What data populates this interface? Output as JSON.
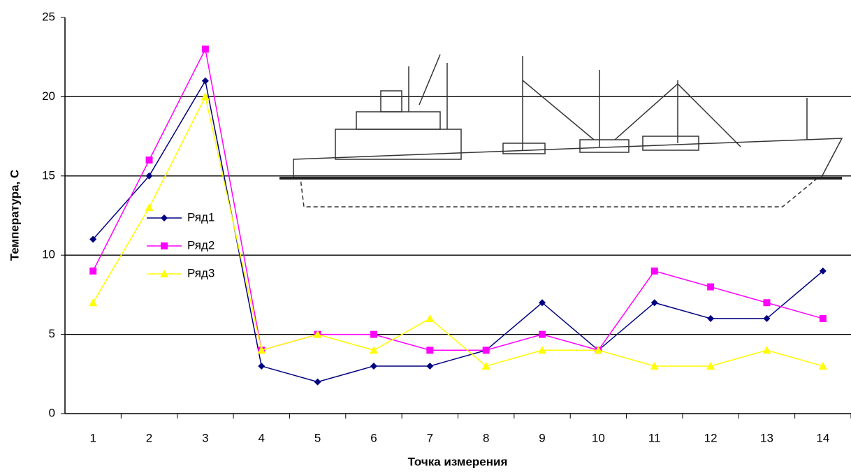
{
  "chart_data": {
    "type": "line",
    "xlabel": "Точка измерения",
    "ylabel": "Температура, С",
    "categories": [
      "1",
      "2",
      "3",
      "4",
      "5",
      "6",
      "7",
      "8",
      "9",
      "10",
      "11",
      "12",
      "13",
      "14"
    ],
    "series": [
      {
        "name": "Ряд1",
        "color": "#000080",
        "marker": "diamond",
        "values": [
          11,
          15,
          21,
          3,
          2,
          3,
          3,
          4,
          7,
          4,
          7,
          6,
          6,
          9
        ]
      },
      {
        "name": "Ряд2",
        "color": "#ff00ff",
        "marker": "square",
        "values": [
          9,
          16,
          23,
          4,
          5,
          5,
          4,
          4,
          5,
          4,
          9,
          8,
          7,
          6
        ]
      },
      {
        "name": "Ряд3",
        "color": "#ffff00",
        "marker": "triangle",
        "values": [
          7,
          13,
          20,
          4,
          5,
          4,
          6,
          3,
          4,
          4,
          3,
          3,
          4,
          3
        ]
      }
    ],
    "ylim": [
      0,
      25
    ],
    "yticks": [
      0,
      5,
      10,
      15,
      20,
      25
    ],
    "grid": true,
    "legend": "left"
  }
}
